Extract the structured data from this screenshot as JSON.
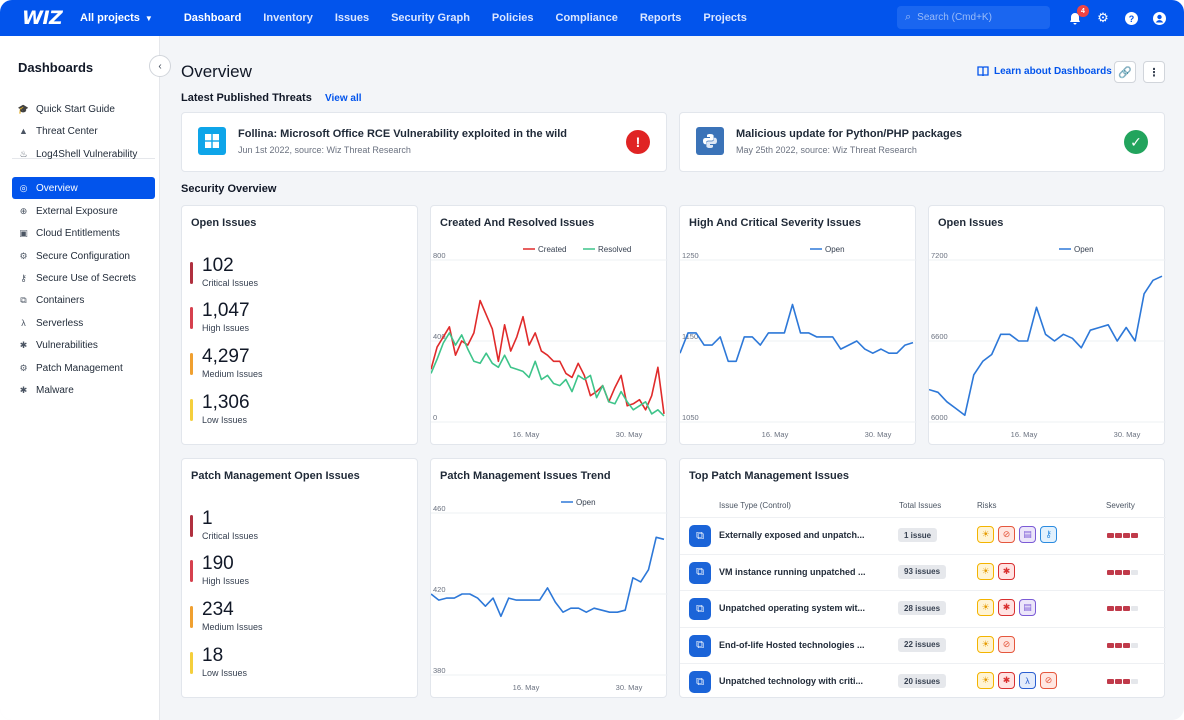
{
  "topnav": {
    "logo": "WIZ",
    "project": "All projects",
    "links": [
      "Dashboard",
      "Inventory",
      "Issues",
      "Security Graph",
      "Policies",
      "Compliance",
      "Reports",
      "Projects"
    ],
    "active_link": "Dashboard",
    "search_placeholder": "Search (Cmd+K)",
    "notification_count": "4",
    "icons": [
      "bell-icon",
      "gear-icon",
      "help-icon",
      "user-icon"
    ]
  },
  "sidebar": {
    "title": "Dashboards",
    "items": [
      {
        "label": "Quick Start Guide",
        "icon": "graduation-cap-icon"
      },
      {
        "label": "Threat Center",
        "icon": "warning-triangle-icon"
      },
      {
        "label": "Log4Shell Vulnerability",
        "icon": "flame-icon"
      },
      {
        "label": "Overview",
        "icon": "dashboard-icon",
        "active": true
      },
      {
        "label": "External Exposure",
        "icon": "globe-icon"
      },
      {
        "label": "Cloud Entitlements",
        "icon": "badge-icon"
      },
      {
        "label": "Secure Configuration",
        "icon": "gear-icon"
      },
      {
        "label": "Secure Use of Secrets",
        "icon": "key-icon"
      },
      {
        "label": "Containers",
        "icon": "container-icon"
      },
      {
        "label": "Serverless",
        "icon": "lambda-icon"
      },
      {
        "label": "Vulnerabilities",
        "icon": "bug-icon"
      },
      {
        "label": "Patch Management",
        "icon": "gear-icon"
      },
      {
        "label": "Malware",
        "icon": "bug-icon"
      }
    ]
  },
  "main": {
    "title": "Overview",
    "learn_link": "Learn about Dashboards",
    "latest_threats_label": "Latest Published Threats",
    "view_all": "View all",
    "threats": [
      {
        "title": "Follina: Microsoft Office RCE Vulnerability exploited in the wild",
        "subtitle": "Jun 1st 2022, source: Wiz Threat Research",
        "icon": "windows-icon",
        "status": "!",
        "status_color": "#e02424",
        "icon_color": "#0ea5e9"
      },
      {
        "title": "Malicious update for Python/PHP packages",
        "subtitle": "May 25th 2022, source: Wiz Threat Research",
        "icon": "python-icon",
        "status": "✓",
        "status_color": "#22a45d",
        "icon_color": "#3b73b8"
      }
    ],
    "security_overview_label": "Security Overview",
    "open_issues": {
      "title": "Open Issues",
      "metrics": [
        {
          "value": "102",
          "label": "Critical Issues",
          "color": "#b0303f"
        },
        {
          "value": "1,047",
          "label": "High Issues",
          "color": "#d6404e"
        },
        {
          "value": "4,297",
          "label": "Medium Issues",
          "color": "#f0a030"
        },
        {
          "value": "1,306",
          "label": "Low Issues",
          "color": "#f5cf3c"
        }
      ]
    },
    "patch_open_issues": {
      "title": "Patch Management Open Issues",
      "metrics": [
        {
          "value": "1",
          "label": "Critical Issues",
          "color": "#b0303f"
        },
        {
          "value": "190",
          "label": "High Issues",
          "color": "#d6404e"
        },
        {
          "value": "234",
          "label": "Medium Issues",
          "color": "#f0a030"
        },
        {
          "value": "18",
          "label": "Low Issues",
          "color": "#f5cf3c"
        }
      ]
    },
    "top_patch": {
      "title": "Top Patch Management Issues",
      "headers": [
        "Issue Type (Control)",
        "Total Issues",
        "Risks",
        "Severity"
      ],
      "rows": [
        {
          "name": "Externally exposed and unpatch...",
          "count": "1 issue",
          "risks": [
            "sun",
            "ban",
            "id",
            "key"
          ],
          "severity": 4
        },
        {
          "name": "VM instance running unpatched ...",
          "count": "93 issues",
          "risks": [
            "sun",
            "bug"
          ],
          "severity": 3
        },
        {
          "name": "Unpatched operating system wit...",
          "count": "28 issues",
          "risks": [
            "sun",
            "bug",
            "id"
          ],
          "severity": 3
        },
        {
          "name": "End-of-life Hosted technologies ...",
          "count": "22 issues",
          "risks": [
            "sun",
            "ban"
          ],
          "severity": 3
        },
        {
          "name": "Unpatched technology with criti...",
          "count": "20 issues",
          "risks": [
            "sun",
            "bug",
            "lam",
            "ban"
          ],
          "severity": 3
        }
      ]
    }
  },
  "chart_data": [
    {
      "type": "line",
      "title": "Created And Resolved Issues",
      "ylim": [
        0,
        800
      ],
      "yticks": [
        "800",
        "400",
        "0"
      ],
      "xticks": [
        "16. May",
        "30. May"
      ],
      "series": [
        {
          "name": "Created",
          "color": "#e02b2b",
          "values": [
            260,
            370,
            420,
            470,
            330,
            400,
            380,
            440,
            600,
            530,
            460,
            300,
            480,
            350,
            420,
            520,
            380,
            440,
            350,
            330,
            300,
            300,
            240,
            220,
            290,
            230,
            130,
            150,
            180,
            100,
            170,
            230,
            80,
            90,
            110,
            60,
            130,
            270,
            40
          ]
        },
        {
          "name": "Resolved",
          "color": "#3ec48a",
          "values": [
            240,
            310,
            390,
            440,
            380,
            430,
            360,
            300,
            290,
            340,
            290,
            270,
            330,
            270,
            260,
            250,
            220,
            300,
            210,
            230,
            190,
            180,
            210,
            150,
            230,
            210,
            230,
            120,
            180,
            100,
            90,
            150,
            100,
            60,
            80,
            100,
            40,
            60,
            30
          ]
        }
      ]
    },
    {
      "type": "line",
      "title": "High And Critical Severity Issues",
      "ylim": [
        1050,
        1250
      ],
      "yticks": [
        "1250",
        "1150",
        "1050"
      ],
      "xticks": [
        "16. May",
        "30. May"
      ],
      "series": [
        {
          "name": "Open",
          "color": "#2d78d8",
          "values": [
            1135,
            1160,
            1160,
            1145,
            1145,
            1155,
            1125,
            1125,
            1155,
            1155,
            1145,
            1160,
            1160,
            1160,
            1195,
            1160,
            1160,
            1155,
            1155,
            1155,
            1140,
            1145,
            1150,
            1140,
            1135,
            1140,
            1135,
            1135,
            1145,
            1148
          ]
        }
      ]
    },
    {
      "type": "line",
      "title": "Open Issues",
      "ylim": [
        6000,
        7200
      ],
      "yticks": [
        "7200",
        "6600",
        "6000"
      ],
      "xticks": [
        "16. May",
        "30. May"
      ],
      "series": [
        {
          "name": "Open",
          "color": "#2d78d8",
          "values": [
            6240,
            6220,
            6150,
            6100,
            6050,
            6350,
            6450,
            6500,
            6650,
            6650,
            6600,
            6600,
            6850,
            6650,
            6600,
            6650,
            6620,
            6550,
            6680,
            6700,
            6720,
            6600,
            6700,
            6600,
            6950,
            7050,
            7080
          ]
        }
      ]
    },
    {
      "type": "line",
      "title": "Patch Management Issues Trend",
      "ylim": [
        380,
        460
      ],
      "yticks": [
        "460",
        "420",
        "380"
      ],
      "xticks": [
        "16. May",
        "30. May"
      ],
      "series": [
        {
          "name": "Open",
          "color": "#2d78d8",
          "values": [
            420,
            417,
            418,
            418,
            420,
            420,
            418,
            414,
            418,
            409,
            418,
            417,
            417,
            417,
            417,
            423,
            416,
            411,
            413,
            413,
            411,
            413,
            412,
            411,
            411,
            412,
            428,
            426,
            432,
            448,
            447
          ]
        }
      ]
    }
  ]
}
